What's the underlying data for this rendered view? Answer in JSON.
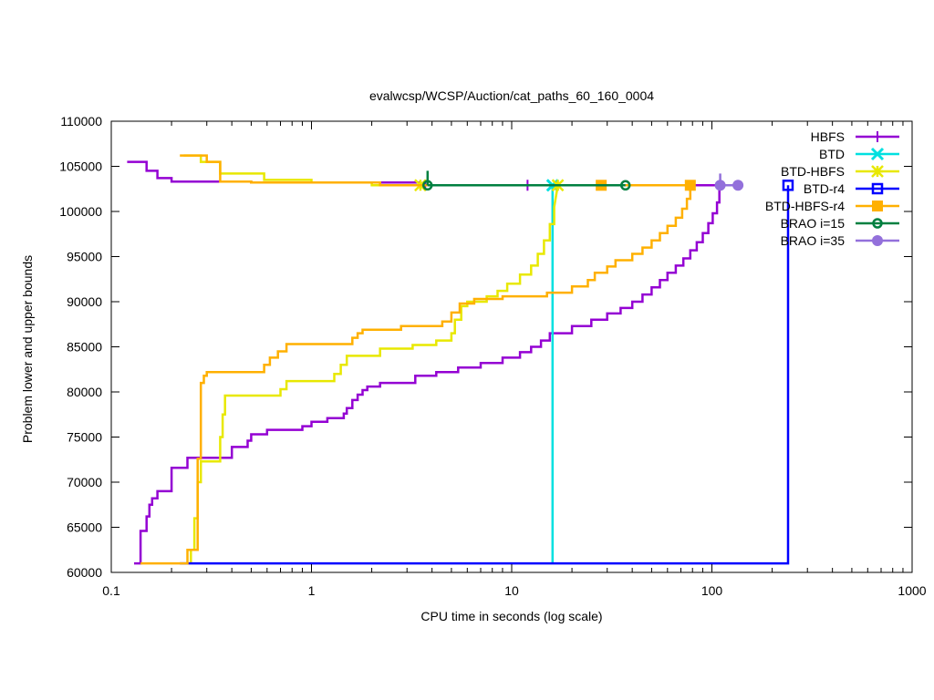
{
  "chart_data": {
    "type": "line",
    "title": "evalwcsp/WCSP/Auction/cat_paths_60_160_0004",
    "xlabel": "CPU time in seconds (log scale)",
    "ylabel": "Problem lower and upper bounds",
    "xscale": "log",
    "xlim": [
      0.1,
      1000
    ],
    "ylim": [
      60000,
      110000
    ],
    "xticks": [
      0.1,
      1,
      10,
      100,
      1000
    ],
    "xtick_labels": [
      "0.1",
      "1",
      "10",
      "100",
      "1000"
    ],
    "yticks": [
      60000,
      65000,
      70000,
      75000,
      80000,
      85000,
      90000,
      95000,
      100000,
      105000,
      110000
    ],
    "ytick_labels": [
      "60000",
      "65000",
      "70000",
      "75000",
      "80000",
      "85000",
      "90000",
      "95000",
      "100000",
      "105000",
      "110000"
    ],
    "grid": false,
    "legend_position": "top-right",
    "series": [
      {
        "name": "HBFS",
        "color": "#9400d3",
        "marker": "plus",
        "lower": [
          [
            0.13,
            61000
          ],
          [
            0.14,
            61000
          ],
          [
            0.14,
            64600
          ],
          [
            0.15,
            64600
          ],
          [
            0.15,
            66200
          ],
          [
            0.155,
            66200
          ],
          [
            0.155,
            67500
          ],
          [
            0.16,
            67500
          ],
          [
            0.16,
            68200
          ],
          [
            0.17,
            68200
          ],
          [
            0.17,
            69000
          ],
          [
            0.2,
            69000
          ],
          [
            0.2,
            71600
          ],
          [
            0.24,
            71600
          ],
          [
            0.24,
            72700
          ],
          [
            0.4,
            72700
          ],
          [
            0.4,
            73900
          ],
          [
            0.48,
            73900
          ],
          [
            0.48,
            74600
          ],
          [
            0.5,
            74600
          ],
          [
            0.5,
            75300
          ],
          [
            0.6,
            75300
          ],
          [
            0.6,
            75800
          ],
          [
            0.9,
            75800
          ],
          [
            0.9,
            76200
          ],
          [
            1.0,
            76200
          ],
          [
            1.0,
            76700
          ],
          [
            1.2,
            76700
          ],
          [
            1.2,
            77100
          ],
          [
            1.45,
            77100
          ],
          [
            1.45,
            77600
          ],
          [
            1.5,
            77600
          ],
          [
            1.5,
            78200
          ],
          [
            1.6,
            78200
          ],
          [
            1.6,
            79100
          ],
          [
            1.7,
            79100
          ],
          [
            1.7,
            79700
          ],
          [
            1.8,
            79700
          ],
          [
            1.8,
            80200
          ],
          [
            1.9,
            80200
          ],
          [
            1.9,
            80600
          ],
          [
            2.2,
            80600
          ],
          [
            2.2,
            81000
          ],
          [
            3.3,
            81000
          ],
          [
            3.3,
            81800
          ],
          [
            4.2,
            81800
          ],
          [
            4.2,
            82200
          ],
          [
            5.4,
            82200
          ],
          [
            5.4,
            82700
          ],
          [
            7.0,
            82700
          ],
          [
            7.0,
            83200
          ],
          [
            9.0,
            83200
          ],
          [
            9.0,
            83800
          ],
          [
            11.0,
            83800
          ],
          [
            11.0,
            84400
          ],
          [
            12.5,
            84400
          ],
          [
            12.5,
            85000
          ],
          [
            14.0,
            85000
          ],
          [
            14.0,
            85700
          ],
          [
            15.5,
            85700
          ],
          [
            15.5,
            86500
          ],
          [
            20,
            86500
          ],
          [
            20,
            87300
          ],
          [
            25,
            87300
          ],
          [
            25,
            88000
          ],
          [
            30,
            88000
          ],
          [
            30,
            88700
          ],
          [
            35,
            88700
          ],
          [
            35,
            89300
          ],
          [
            40,
            89300
          ],
          [
            40,
            90000
          ],
          [
            45,
            90000
          ],
          [
            45,
            90800
          ],
          [
            50,
            90800
          ],
          [
            50,
            91600
          ],
          [
            55,
            91600
          ],
          [
            55,
            92400
          ],
          [
            60,
            92400
          ],
          [
            60,
            93200
          ],
          [
            66,
            93200
          ],
          [
            66,
            94000
          ],
          [
            72,
            94000
          ],
          [
            72,
            94800
          ],
          [
            78,
            94800
          ],
          [
            78,
            95700
          ],
          [
            84,
            95700
          ],
          [
            84,
            96600
          ],
          [
            90,
            96600
          ],
          [
            90,
            97600
          ],
          [
            96,
            97600
          ],
          [
            96,
            98700
          ],
          [
            101,
            98700
          ],
          [
            101,
            99800
          ],
          [
            106,
            99800
          ],
          [
            106,
            101000
          ],
          [
            109,
            101000
          ],
          [
            109,
            102300
          ],
          [
            110,
            102900
          ]
        ],
        "upper": [
          [
            0.12,
            105500
          ],
          [
            0.15,
            105500
          ],
          [
            0.15,
            104500
          ],
          [
            0.17,
            104500
          ],
          [
            0.17,
            103700
          ],
          [
            0.2,
            103700
          ],
          [
            0.2,
            103300
          ],
          [
            0.5,
            103300
          ],
          [
            0.5,
            103200
          ],
          [
            3.5,
            103200
          ],
          [
            3.5,
            102900
          ],
          [
            110,
            102900
          ]
        ],
        "markers": [
          [
            3.7,
            102900
          ],
          [
            12,
            102900
          ],
          [
            110,
            102900
          ]
        ]
      },
      {
        "name": "BTD",
        "color": "#00e0e0",
        "marker": "cross",
        "lower": [
          [
            16,
            61000
          ],
          [
            16,
            102900
          ]
        ],
        "upper": [
          [
            16,
            102900
          ]
        ],
        "markers": [
          [
            16,
            102900
          ]
        ]
      },
      {
        "name": "BTD-HBFS",
        "color": "#e8e800",
        "marker": "star",
        "lower": [
          [
            0.25,
            61000
          ],
          [
            0.25,
            62500
          ],
          [
            0.26,
            62500
          ],
          [
            0.26,
            66000
          ],
          [
            0.27,
            66000
          ],
          [
            0.27,
            70000
          ],
          [
            0.28,
            70000
          ],
          [
            0.28,
            72300
          ],
          [
            0.35,
            72300
          ],
          [
            0.35,
            75000
          ],
          [
            0.36,
            75000
          ],
          [
            0.36,
            77500
          ],
          [
            0.37,
            77500
          ],
          [
            0.37,
            79600
          ],
          [
            0.7,
            79600
          ],
          [
            0.7,
            80300
          ],
          [
            0.75,
            80300
          ],
          [
            0.75,
            81200
          ],
          [
            1.3,
            81200
          ],
          [
            1.3,
            82000
          ],
          [
            1.4,
            82000
          ],
          [
            1.4,
            83000
          ],
          [
            1.5,
            83000
          ],
          [
            1.5,
            84000
          ],
          [
            2.2,
            84000
          ],
          [
            2.2,
            84800
          ],
          [
            3.2,
            84800
          ],
          [
            3.2,
            85200
          ],
          [
            4.2,
            85200
          ],
          [
            4.2,
            85700
          ],
          [
            5.0,
            85700
          ],
          [
            5.0,
            86500
          ],
          [
            5.2,
            86500
          ],
          [
            5.2,
            88000
          ],
          [
            5.6,
            88000
          ],
          [
            5.6,
            89500
          ],
          [
            6.0,
            89500
          ],
          [
            6.0,
            90000
          ],
          [
            7.5,
            90000
          ],
          [
            7.5,
            90600
          ],
          [
            8.5,
            90600
          ],
          [
            8.5,
            91200
          ],
          [
            9.5,
            91200
          ],
          [
            9.5,
            92000
          ],
          [
            11.0,
            92000
          ],
          [
            11.0,
            93000
          ],
          [
            12.5,
            93000
          ],
          [
            12.5,
            94000
          ],
          [
            13.5,
            94000
          ],
          [
            13.5,
            95300
          ],
          [
            14.5,
            95300
          ],
          [
            14.5,
            96800
          ],
          [
            15.5,
            96800
          ],
          [
            15.5,
            98600
          ],
          [
            16.3,
            98600
          ],
          [
            16.3,
            100500
          ],
          [
            17,
            102900
          ]
        ],
        "upper": [
          [
            0.23,
            106200
          ],
          [
            0.28,
            106200
          ],
          [
            0.28,
            105500
          ],
          [
            0.35,
            105500
          ],
          [
            0.35,
            104200
          ],
          [
            0.58,
            104200
          ],
          [
            0.58,
            103500
          ],
          [
            1.0,
            103500
          ],
          [
            1.0,
            103200
          ],
          [
            2.0,
            103200
          ],
          [
            2.0,
            102900
          ],
          [
            17,
            102900
          ]
        ],
        "markers": [
          [
            3.5,
            102900
          ],
          [
            17,
            102900
          ]
        ]
      },
      {
        "name": "BTD-r4",
        "color": "#0000ff",
        "marker": "open-square",
        "lower": [
          [
            0.22,
            61000
          ],
          [
            240,
            61000
          ],
          [
            240,
            102900
          ]
        ],
        "upper": [
          [
            240,
            102900
          ]
        ],
        "markers": [
          [
            240,
            102900
          ]
        ]
      },
      {
        "name": "BTD-HBFS-r4",
        "color": "#ffb000",
        "marker": "filled-square",
        "lower": [
          [
            0.14,
            61000
          ],
          [
            0.24,
            61000
          ],
          [
            0.24,
            62500
          ],
          [
            0.27,
            62500
          ],
          [
            0.27,
            72600
          ],
          [
            0.28,
            72600
          ],
          [
            0.28,
            81000
          ],
          [
            0.29,
            81000
          ],
          [
            0.29,
            81800
          ],
          [
            0.3,
            81800
          ],
          [
            0.3,
            82200
          ],
          [
            0.58,
            82200
          ],
          [
            0.58,
            83000
          ],
          [
            0.62,
            83000
          ],
          [
            0.62,
            83800
          ],
          [
            0.68,
            83800
          ],
          [
            0.68,
            84500
          ],
          [
            0.75,
            84500
          ],
          [
            0.75,
            85300
          ],
          [
            1.6,
            85300
          ],
          [
            1.6,
            86000
          ],
          [
            1.7,
            86000
          ],
          [
            1.7,
            86500
          ],
          [
            1.8,
            86500
          ],
          [
            1.8,
            86900
          ],
          [
            2.8,
            86900
          ],
          [
            2.8,
            87300
          ],
          [
            4.5,
            87300
          ],
          [
            4.5,
            87800
          ],
          [
            5.0,
            87800
          ],
          [
            5.0,
            88800
          ],
          [
            5.5,
            88800
          ],
          [
            5.5,
            89800
          ],
          [
            6.5,
            89800
          ],
          [
            6.5,
            90300
          ],
          [
            9.0,
            90300
          ],
          [
            9.0,
            90600
          ],
          [
            15,
            90600
          ],
          [
            15,
            91000
          ],
          [
            20,
            91000
          ],
          [
            20,
            91700
          ],
          [
            24,
            91700
          ],
          [
            24,
            92400
          ],
          [
            26,
            92400
          ],
          [
            26,
            93200
          ],
          [
            30,
            93200
          ],
          [
            30,
            93900
          ],
          [
            33,
            93900
          ],
          [
            33,
            94600
          ],
          [
            40,
            94600
          ],
          [
            40,
            95300
          ],
          [
            45,
            95300
          ],
          [
            45,
            96000
          ],
          [
            50,
            96000
          ],
          [
            50,
            96800
          ],
          [
            55,
            96800
          ],
          [
            55,
            97600
          ],
          [
            60,
            97600
          ],
          [
            60,
            98400
          ],
          [
            66,
            98400
          ],
          [
            66,
            99300
          ],
          [
            71,
            99300
          ],
          [
            71,
            100300
          ],
          [
            75,
            100300
          ],
          [
            75,
            101400
          ],
          [
            78,
            101400
          ],
          [
            78,
            102900
          ]
        ],
        "upper": [
          [
            0.22,
            106200
          ],
          [
            0.3,
            106200
          ],
          [
            0.3,
            105500
          ],
          [
            0.35,
            105500
          ],
          [
            0.35,
            103300
          ],
          [
            0.5,
            103300
          ],
          [
            0.5,
            103200
          ],
          [
            2.2,
            103200
          ],
          [
            2.2,
            102900
          ],
          [
            78,
            102900
          ]
        ],
        "markers": [
          [
            28,
            102900
          ],
          [
            78,
            102900
          ]
        ]
      },
      {
        "name": "BRAO i=15",
        "color": "#008040",
        "marker": "open-circle",
        "lower": [
          [
            3.8,
            102900
          ],
          [
            37,
            102900
          ]
        ],
        "upper": [
          [
            3.8,
            104500
          ],
          [
            3.8,
            102900
          ]
        ],
        "markers": [
          [
            3.8,
            102900
          ],
          [
            37,
            102900
          ]
        ]
      },
      {
        "name": "BRAO i=35",
        "color": "#9370db",
        "marker": "filled-circle",
        "lower": [
          [
            110,
            102900
          ],
          [
            135,
            102900
          ]
        ],
        "upper": [
          [
            110,
            104200
          ],
          [
            110,
            102900
          ]
        ],
        "markers": [
          [
            110,
            102900
          ],
          [
            135,
            102900
          ]
        ]
      }
    ]
  }
}
